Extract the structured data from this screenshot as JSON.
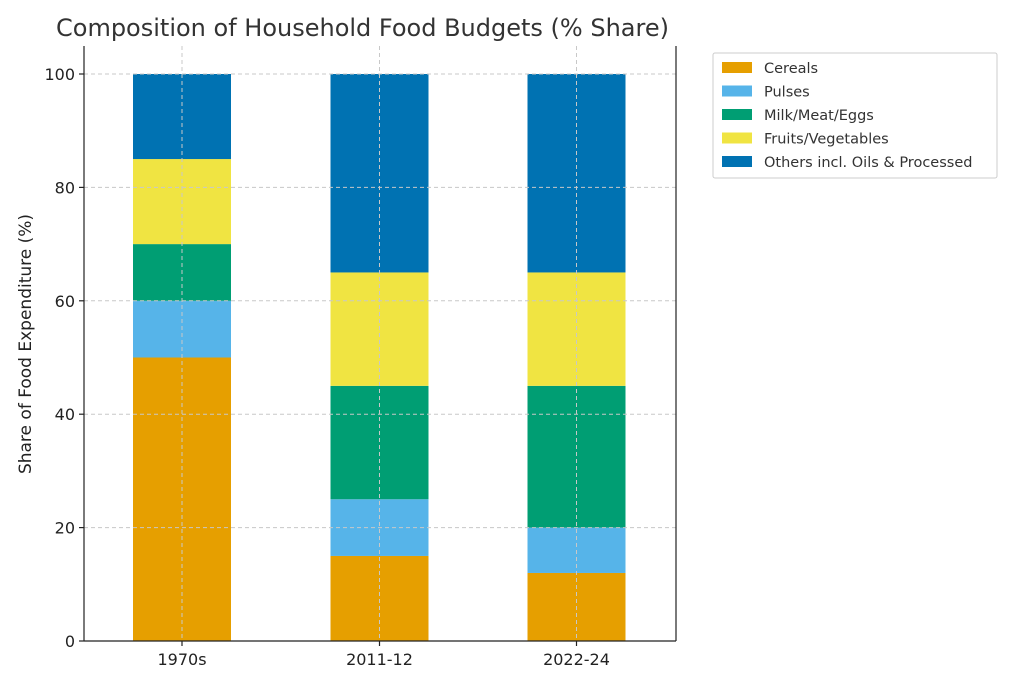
{
  "chart_data": {
    "type": "bar",
    "stacked": true,
    "title": "Composition of Household Food Budgets (% Share)",
    "xlabel": "",
    "ylabel": "Share of Food Expenditure (%)",
    "ylim": [
      0,
      100
    ],
    "yticks": [
      0,
      20,
      40,
      60,
      80,
      100
    ],
    "categories": [
      "1970s",
      "2011-12",
      "2022-24"
    ],
    "series": [
      {
        "name": "Cereals",
        "color": "#E69F00",
        "values": [
          50,
          15,
          12
        ]
      },
      {
        "name": "Pulses",
        "color": "#56B4E9",
        "values": [
          10,
          10,
          8
        ]
      },
      {
        "name": "Milk/Meat/Eggs",
        "color": "#009E73",
        "values": [
          10,
          20,
          25
        ]
      },
      {
        "name": "Fruits/Vegetables",
        "color": "#F0E442",
        "values": [
          15,
          20,
          20
        ]
      },
      {
        "name": "Others incl. Oils & Processed",
        "color": "#0072B2",
        "values": [
          15,
          35,
          35
        ]
      }
    ],
    "grid": true,
    "legend_position": "outside-top-right"
  }
}
